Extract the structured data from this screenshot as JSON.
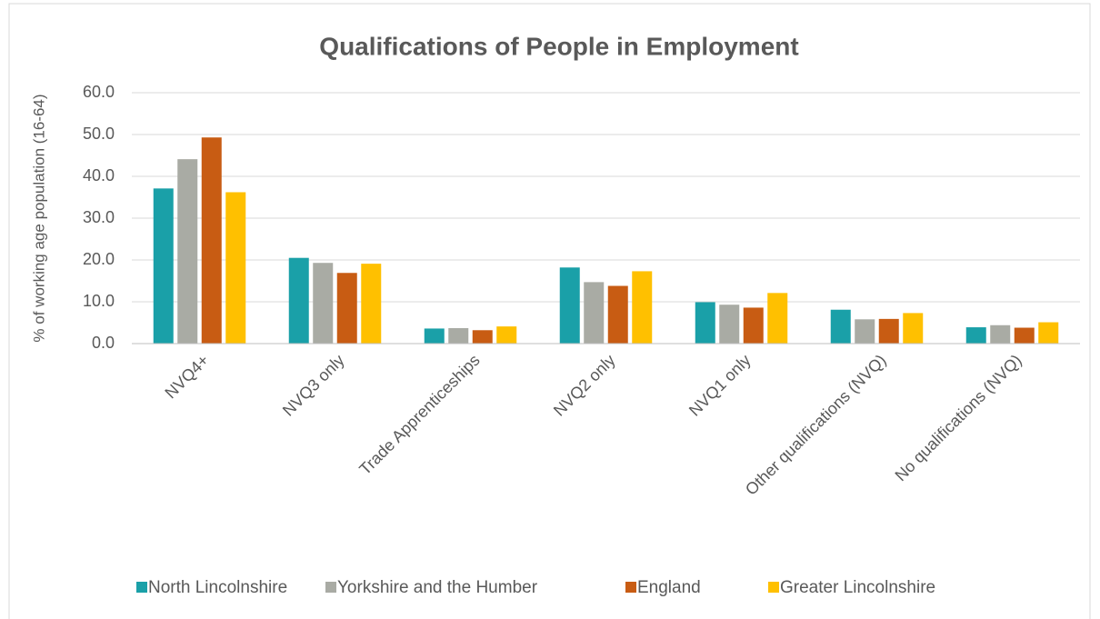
{
  "chart_data": {
    "type": "bar",
    "title": "Qualifications of People in Employment",
    "y_label": "% of working age population (16-64)",
    "categories": [
      "NVQ4+",
      "NVQ3 only",
      "Trade Apprenticeships",
      "NVQ2 only",
      "NVQ1 only",
      "Other qualifications (NVQ)",
      "No qualifications (NVQ)"
    ],
    "series": [
      {
        "name": "North Lincolnshire",
        "color": "#1aa0a8",
        "values": [
          37.1,
          20.5,
          3.6,
          18.2,
          9.9,
          8.1,
          3.9
        ]
      },
      {
        "name": "Yorkshire and the Humber",
        "color": "#a9aba4",
        "values": [
          44.1,
          19.3,
          3.7,
          14.7,
          9.3,
          5.8,
          4.4
        ]
      },
      {
        "name": "England",
        "color": "#c85c13",
        "values": [
          49.3,
          16.9,
          3.2,
          13.8,
          8.6,
          5.9,
          3.8
        ]
      },
      {
        "name": "Greater Lincolnshire",
        "color": "#ffc000",
        "values": [
          36.2,
          19.1,
          4.1,
          17.3,
          12.1,
          7.3,
          5.1
        ]
      }
    ],
    "ylim": [
      0,
      60
    ],
    "yticks": [
      {
        "value": 0,
        "label": "0.0"
      },
      {
        "value": 10,
        "label": "10.0"
      },
      {
        "value": 20,
        "label": "20.0"
      },
      {
        "value": 30,
        "label": "30.0"
      },
      {
        "value": 40,
        "label": "40.0"
      },
      {
        "value": 50,
        "label": "50.0"
      },
      {
        "value": 60,
        "label": "60.0"
      }
    ],
    "grid": true,
    "legend": "bottom"
  }
}
